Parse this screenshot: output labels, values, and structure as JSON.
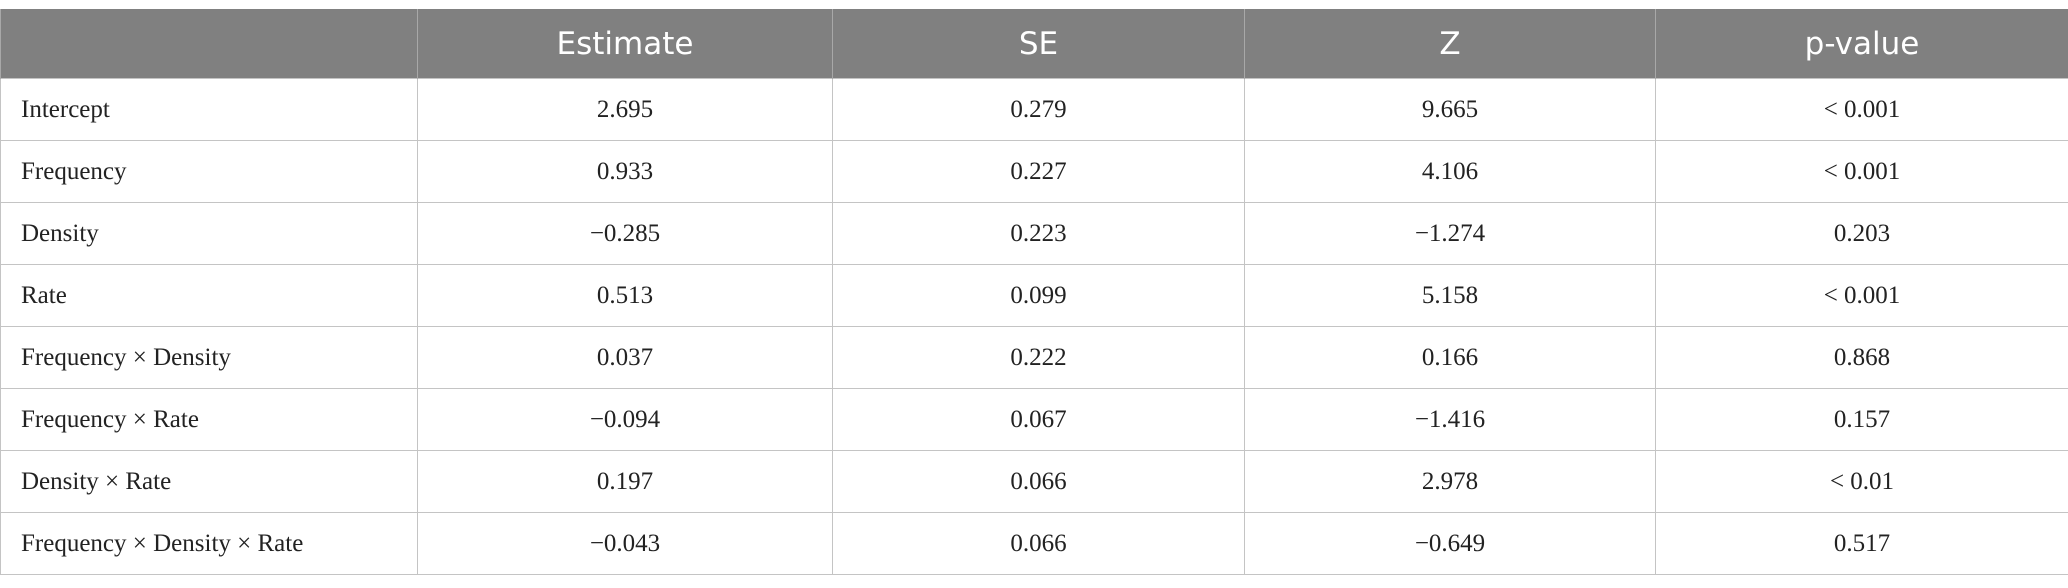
{
  "table": {
    "header": [
      "Estimate",
      "SE",
      "Z",
      "p-value"
    ],
    "rows": [
      [
        "Intercept",
        "2.695",
        "0.279",
        "9.665",
        "< 0.001"
      ],
      [
        "Frequency",
        "0.933",
        "0.227",
        "4.106",
        "< 0.001"
      ],
      [
        "Density",
        "−0.285",
        "0.223",
        "−1.274",
        "0.203"
      ],
      [
        "Rate",
        "0.513",
        "0.099",
        "5.158",
        "< 0.001"
      ],
      [
        "Frequency × Density",
        "0.037",
        "0.222",
        "0.166",
        "0.868"
      ],
      [
        "Frequency × Rate",
        "−0.094",
        "0.067",
        "−1.416",
        "0.157"
      ],
      [
        "Density × Rate",
        "0.197",
        "0.066",
        "2.978",
        "< 0.01"
      ],
      [
        "Frequency × Density × Rate",
        "−0.043",
        "0.066",
        "−0.649",
        "0.517"
      ]
    ]
  }
}
